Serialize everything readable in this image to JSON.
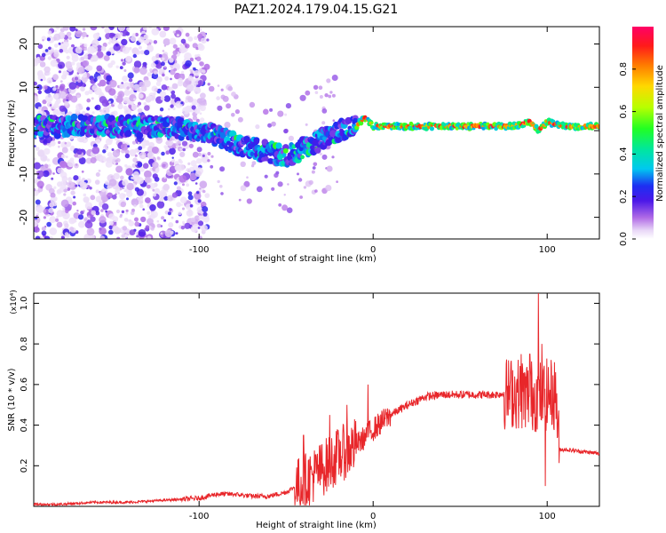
{
  "title": "PAZ1.2024.179.04.15.G21",
  "chart_data": [
    {
      "type": "heatmap",
      "xlabel": "Height of straight line (km)",
      "ylabel": "Frequency (Hz)",
      "xlim": [
        -195,
        130
      ],
      "ylim": [
        -25,
        24
      ],
      "x_ticks": [
        -100,
        0,
        100
      ],
      "y_ticks": [
        -20,
        -10,
        0,
        10,
        20
      ],
      "colorbar": {
        "label": "Normalized spectral amplitude",
        "range": [
          0.0,
          1.0
        ],
        "ticks": [
          "0.0",
          "0.2",
          "0.4",
          "0.6",
          "0.8"
        ],
        "colormap": "rainbow (magenta-blue-cyan-green-yellow-red)"
      },
      "ridge": {
        "x": [
          -195,
          -170,
          -150,
          -130,
          -110,
          -90,
          -80,
          -70,
          -60,
          -50,
          -40,
          -30,
          -20,
          -10,
          -5,
          0,
          20,
          50,
          80,
          90,
          95,
          100,
          110,
          130
        ],
        "y": [
          1,
          1,
          1,
          1,
          0.5,
          -1,
          -3,
          -4,
          -5,
          -6,
          -4,
          -2,
          0,
          1,
          3,
          1,
          1,
          1,
          1,
          2,
          0,
          2,
          1,
          1
        ]
      },
      "notes": "Diffuse low-amplitude speckle below -100 km; narrow high-amplitude ridge near 0-1 Hz above -10 km"
    },
    {
      "type": "line",
      "xlabel": "Height of straight line (km)",
      "ylabel": "SNR (10 * v/v)",
      "y_multiplier": "(x10⁴)",
      "xlim": [
        -195,
        130
      ],
      "ylim": [
        0,
        1.05
      ],
      "x_ticks": [
        -100,
        0,
        100
      ],
      "y_ticks": [
        0.2,
        0.4,
        0.6,
        0.8,
        1.0
      ],
      "series": [
        {
          "color": "#e8262a",
          "x": [
            -195,
            -180,
            -160,
            -140,
            -120,
            -100,
            -90,
            -80,
            -70,
            -60,
            -50,
            -40,
            -30,
            -20,
            -10,
            0,
            10,
            20,
            30,
            40,
            50,
            60,
            70,
            80,
            90,
            95,
            100,
            105,
            107,
            110,
            120,
            130
          ],
          "values": [
            0.01,
            0.01,
            0.02,
            0.02,
            0.03,
            0.04,
            0.06,
            0.06,
            0.05,
            0.05,
            0.07,
            0.12,
            0.18,
            0.25,
            0.3,
            0.38,
            0.45,
            0.5,
            0.54,
            0.55,
            0.55,
            0.55,
            0.55,
            0.56,
            0.55,
            0.54,
            0.55,
            0.55,
            0.28,
            0.28,
            0.27,
            0.26
          ],
          "peaks": [
            [
              -40,
              0.35
            ],
            [
              -25,
              0.45
            ],
            [
              -15,
              0.5
            ],
            [
              -10,
              0.42
            ],
            [
              -3,
              0.6
            ],
            [
              85,
              0.75
            ],
            [
              90,
              0.75
            ],
            [
              94,
              0.6
            ],
            [
              95,
              1.05
            ],
            [
              97,
              0.8
            ],
            [
              99,
              0.1
            ]
          ]
        }
      ]
    }
  ]
}
